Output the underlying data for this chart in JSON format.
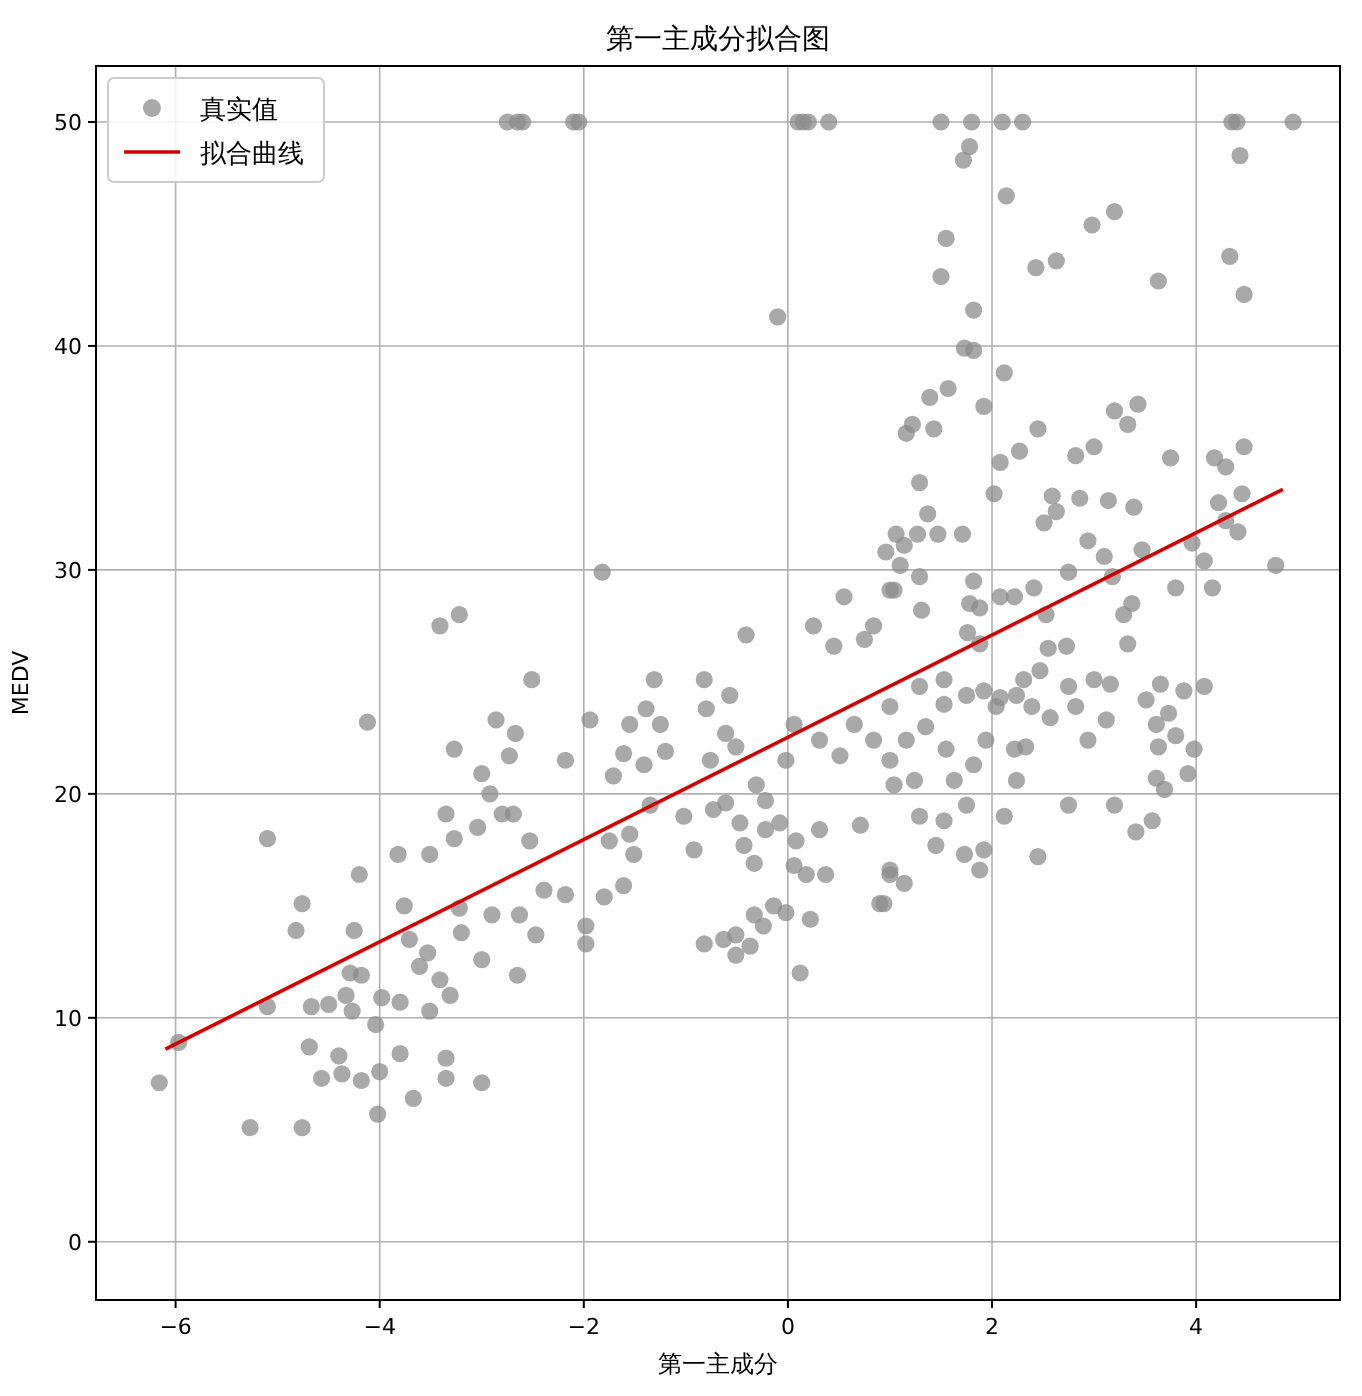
{
  "chart_data": {
    "type": "scatter",
    "title": "第一主成分拟合图",
    "xlabel": "第一主成分",
    "ylabel": "MEDV",
    "xlim": [
      -6.78,
      5.41
    ],
    "ylim": [
      -2.6,
      52.5
    ],
    "xticks": [
      -6,
      -4,
      -2,
      0,
      2,
      4
    ],
    "yticks": [
      0,
      10,
      20,
      30,
      40,
      50
    ],
    "grid": true,
    "legend": "top left",
    "series": [
      {
        "name": "真实值",
        "marker": "circle",
        "color": "#8c8c8c",
        "x": [
          -2.75,
          -2.65,
          -2.6,
          -2.1,
          -2.05,
          0.1,
          0.15,
          0.2,
          0.4,
          1.5,
          1.8,
          2.1,
          2.3,
          4.35,
          4.4,
          4.95,
          1.55,
          1.5,
          1.82,
          -0.1,
          1.82,
          2.14,
          2.98,
          3.2,
          2.43,
          2.63,
          3.63,
          4.33,
          4.47,
          4.43,
          1.78,
          1.72,
          -6.16,
          -5.97,
          -5.27,
          -4.76,
          -5.1,
          -5.1,
          -4.76,
          -4.82,
          -4.67,
          -4.5,
          -4.69,
          -4.57,
          -4.4,
          -4.37,
          -4.18,
          -4.2,
          -4.25,
          -4.29,
          -4.18,
          -4.33,
          -4.27,
          -4.12,
          -3.98,
          -4.04,
          -4.0,
          -4.02,
          -3.67,
          -3.8,
          -3.8,
          -3.76,
          -3.82,
          -3.51,
          -3.71,
          -3.61,
          -3.53,
          -3.51,
          -3.41,
          -3.35,
          -3.35,
          -3.31,
          -3.41,
          -3.22,
          -3.27,
          -3.35,
          -3.27,
          -3.04,
          -3.0,
          -2.86,
          -2.92,
          -3.22,
          -3.0,
          -3.0,
          -2.8,
          -3.2,
          -2.9,
          -2.73,
          -1.82,
          -2.51,
          -2.67,
          -2.18,
          -2.69,
          -2.53,
          -2.39,
          -2.18,
          -2.63,
          -2.47,
          -1.98,
          -1.98,
          -2.65,
          -1.8,
          -1.61,
          -1.75,
          -1.51,
          -1.55,
          -1.94,
          -1.71,
          -1.61,
          -1.41,
          -1.55,
          -1.31,
          -1.25,
          -1.39,
          -1.2,
          -1.35,
          -1.02,
          -0.92,
          -0.82,
          -0.8,
          -0.57,
          -0.76,
          -0.61,
          -0.51,
          -0.73,
          -0.61,
          -0.47,
          -0.41,
          -0.82,
          -0.63,
          -0.51,
          -0.51,
          -0.37,
          -0.33,
          -0.24,
          -0.14,
          -0.02,
          -0.33,
          -0.43,
          -0.31,
          -0.22,
          -0.22,
          -0.08,
          -0.02,
          0.06,
          0.12,
          0.22,
          0.06,
          0.18,
          0.08,
          0.31,
          0.25,
          0.45,
          0.55,
          0.37,
          0.31,
          0.51,
          0.75,
          0.84,
          1.0,
          0.71,
          1.0,
          0.9,
          0.65,
          0.84,
          1.73,
          2.12,
          1.39,
          1.57,
          1.22,
          1.16,
          1.43,
          1.92,
          2.45,
          2.08,
          2.27,
          2.82,
          3.0,
          3.2,
          3.43,
          3.33,
          3.75,
          4.18,
          4.29,
          4.47,
          2.02,
          2.59,
          2.86,
          3.14,
          3.39,
          2.51,
          2.63,
          4.22,
          4.45,
          4.29,
          4.41,
          3.96,
          4.08,
          4.78,
          1.29,
          1.37,
          1.06,
          1.27,
          1.47,
          1.71,
          1.14,
          0.96,
          1.1,
          1.29,
          1.04,
          1.31,
          1.82,
          1.78,
          1.88,
          2.08,
          2.22,
          2.41,
          2.53,
          2.75,
          2.94,
          3.1,
          3.18,
          3.47,
          3.37,
          3.29,
          3.33,
          3.8,
          4.16,
          1.76,
          1.88,
          2.55,
          2.73,
          2.31,
          2.47,
          2.75,
          3.0,
          3.16,
          3.65,
          3.88,
          4.08,
          1.53,
          1.92,
          2.08,
          3.51,
          3.73,
          3.61,
          3.8,
          3.98,
          3.63,
          3.12,
          2.82,
          2.57,
          2.39,
          2.24,
          2.94,
          2.33,
          2.22,
          3.61,
          3.92,
          3.69,
          2.75,
          3.2,
          3.41,
          3.57,
          2.45,
          2.24,
          2.12,
          1.88,
          1.73,
          1.92,
          1.45,
          1.14,
          1.0,
          0.94,
          1.53,
          1.75,
          1.29,
          1.63,
          1.82,
          1.94,
          1.55,
          1.35,
          1.16,
          1.0,
          1.24,
          1.04,
          1.29,
          1.53,
          1.75,
          2.04,
          1.0
        ],
        "values": [
          50,
          50,
          50,
          50,
          50,
          50,
          50,
          50,
          50,
          50,
          50,
          50,
          50,
          50,
          50,
          50,
          44.8,
          43.1,
          41.6,
          41.3,
          39.8,
          46.7,
          45.4,
          46.0,
          43.5,
          43.8,
          42.9,
          44.0,
          42.3,
          48.5,
          48.9,
          48.3,
          7.1,
          8.9,
          5.1,
          5.1,
          10.5,
          18.0,
          15.1,
          13.9,
          10.5,
          10.6,
          8.7,
          7.3,
          8.3,
          7.5,
          7.2,
          16.4,
          13.9,
          12.0,
          11.9,
          11.0,
          10.3,
          23.2,
          10.9,
          9.7,
          7.6,
          5.7,
          6.4,
          8.4,
          10.7,
          15.0,
          17.3,
          17.3,
          13.5,
          12.3,
          12.9,
          10.3,
          11.7,
          8.2,
          7.3,
          11.0,
          27.5,
          28.0,
          22.0,
          19.1,
          18.0,
          18.5,
          20.9,
          23.3,
          20.0,
          14.9,
          12.6,
          7.1,
          19.1,
          13.8,
          14.6,
          21.7,
          29.9,
          25.1,
          22.7,
          21.5,
          19.1,
          17.9,
          15.7,
          15.5,
          14.6,
          13.7,
          14.1,
          13.3,
          11.9,
          15.4,
          15.9,
          17.9,
          17.3,
          18.2,
          23.3,
          20.8,
          21.8,
          21.3,
          23.1,
          25.1,
          23.1,
          23.8,
          21.9,
          19.5,
          19.0,
          17.5,
          25.1,
          23.8,
          24.4,
          21.5,
          22.7,
          22.1,
          19.3,
          19.6,
          18.7,
          27.1,
          13.3,
          13.5,
          13.7,
          12.8,
          13.2,
          14.6,
          14.1,
          15.0,
          14.7,
          16.9,
          17.7,
          20.4,
          19.7,
          18.4,
          18.7,
          21.5,
          23.1,
          12.0,
          14.4,
          16.8,
          16.4,
          17.9,
          18.4,
          27.5,
          26.6,
          28.8,
          16.4,
          22.4,
          21.7,
          26.9,
          27.5,
          29.1,
          18.6,
          16.4,
          15.1,
          23.1,
          22.4,
          39.9,
          38.8,
          37.7,
          38.1,
          36.5,
          36.1,
          36.3,
          37.3,
          36.3,
          34.8,
          35.3,
          35.1,
          35.5,
          37.1,
          37.4,
          36.5,
          35.0,
          35.0,
          34.6,
          35.5,
          33.4,
          33.3,
          33.2,
          33.1,
          32.8,
          32.1,
          32.6,
          33.0,
          33.4,
          32.2,
          31.7,
          31.2,
          30.4,
          30.2,
          33.9,
          32.5,
          31.6,
          31.6,
          31.6,
          31.6,
          31.1,
          30.8,
          30.2,
          29.7,
          29.1,
          28.2,
          29.5,
          28.5,
          28.3,
          28.8,
          28.8,
          29.2,
          28.0,
          29.9,
          31.3,
          30.6,
          29.7,
          30.9,
          28.5,
          28.0,
          26.7,
          29.2,
          29.2,
          27.2,
          26.7,
          26.5,
          26.6,
          25.1,
          25.5,
          24.8,
          25.1,
          24.9,
          24.9,
          24.6,
          24.8,
          25.1,
          24.6,
          24.3,
          24.2,
          23.6,
          23.1,
          22.6,
          22.0,
          22.1,
          23.3,
          23.9,
          23.4,
          23.9,
          24.4,
          22.4,
          22.1,
          22.0,
          20.7,
          20.9,
          20.2,
          19.5,
          19.5,
          18.3,
          18.8,
          17.2,
          20.6,
          19.0,
          16.6,
          17.3,
          17.5,
          17.7,
          16.0,
          16.6,
          15.1,
          18.8,
          19.5,
          19.0,
          20.6,
          21.3,
          22.4,
          22.0,
          23.0,
          22.4,
          21.5,
          20.6,
          20.4,
          24.8,
          24.0,
          24.4,
          23.9,
          23.9
        ]
      },
      {
        "name": "拟合曲线",
        "type": "line",
        "color": "#d40000",
        "x": [
          -6.1,
          4.85
        ],
        "values": [
          8.6,
          33.6
        ]
      }
    ]
  }
}
